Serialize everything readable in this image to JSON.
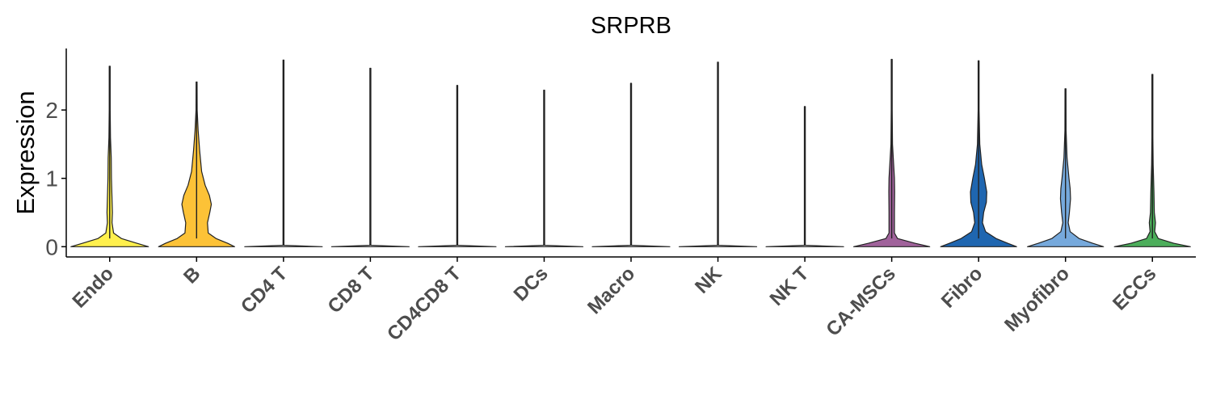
{
  "chart_data": {
    "type": "violin",
    "title": "SRPRB",
    "xlabel": "",
    "ylabel": "Expression",
    "ylim": [
      -0.15,
      2.9
    ],
    "yticks": [
      0,
      1,
      2
    ],
    "grid": false,
    "legend": "none",
    "categories": [
      "Endo",
      "B",
      "CD4 T",
      "CD8 T",
      "CD4CD8 T",
      "DCs",
      "Macro",
      "NK",
      "NK T",
      "CA-MSCs",
      "Fibro",
      "Myofibro",
      "ECCs"
    ],
    "colors": [
      "#FFF04D",
      "#FCC237",
      "#FFFFFF",
      "#FFFFFF",
      "#FFFFFF",
      "#FFFFFF",
      "#FFFFFF",
      "#FFFFFF",
      "#FFFFFF",
      "#A0629B",
      "#1F66B0",
      "#76A9DC",
      "#4CAE5B"
    ],
    "max_values": [
      2.64,
      2.41,
      2.73,
      2.61,
      2.36,
      2.29,
      2.39,
      2.7,
      2.05,
      2.74,
      2.72,
      2.31,
      2.52
    ],
    "density_profiles": [
      [
        [
          0,
          1.0
        ],
        [
          0.05,
          0.7
        ],
        [
          0.12,
          0.3
        ],
        [
          0.2,
          0.1
        ],
        [
          0.35,
          0.06
        ],
        [
          0.5,
          0.07
        ],
        [
          0.7,
          0.06
        ],
        [
          1.0,
          0.045
        ],
        [
          1.3,
          0.04
        ],
        [
          1.6,
          0.02
        ],
        [
          2.0,
          0.008
        ],
        [
          2.64,
          0.003
        ]
      ],
      [
        [
          0,
          0.98
        ],
        [
          0.05,
          0.8
        ],
        [
          0.12,
          0.5
        ],
        [
          0.2,
          0.3
        ],
        [
          0.35,
          0.28
        ],
        [
          0.5,
          0.34
        ],
        [
          0.62,
          0.38
        ],
        [
          0.75,
          0.33
        ],
        [
          0.9,
          0.22
        ],
        [
          1.1,
          0.13
        ],
        [
          1.4,
          0.08
        ],
        [
          1.7,
          0.04
        ],
        [
          2.0,
          0.015
        ],
        [
          2.41,
          0.004
        ]
      ],
      [
        [
          0,
          1.0
        ],
        [
          0.02,
          0.003
        ],
        [
          2.73,
          0.003
        ]
      ],
      [
        [
          0,
          1.0
        ],
        [
          0.02,
          0.003
        ],
        [
          2.61,
          0.003
        ]
      ],
      [
        [
          0,
          1.0
        ],
        [
          0.02,
          0.003
        ],
        [
          2.36,
          0.003
        ]
      ],
      [
        [
          0,
          1.0
        ],
        [
          0.02,
          0.003
        ],
        [
          2.29,
          0.003
        ]
      ],
      [
        [
          0,
          1.0
        ],
        [
          0.02,
          0.003
        ],
        [
          2.39,
          0.003
        ]
      ],
      [
        [
          0,
          1.0
        ],
        [
          0.02,
          0.003
        ],
        [
          2.7,
          0.003
        ]
      ],
      [
        [
          0,
          1.0
        ],
        [
          0.02,
          0.003
        ],
        [
          2.05,
          0.003
        ]
      ],
      [
        [
          0,
          0.98
        ],
        [
          0.05,
          0.6
        ],
        [
          0.12,
          0.15
        ],
        [
          0.2,
          0.07
        ],
        [
          0.5,
          0.07
        ],
        [
          0.8,
          0.075
        ],
        [
          1.0,
          0.07
        ],
        [
          1.2,
          0.05
        ],
        [
          1.5,
          0.02
        ],
        [
          2.0,
          0.008
        ],
        [
          2.74,
          0.003
        ]
      ],
      [
        [
          0,
          0.98
        ],
        [
          0.05,
          0.75
        ],
        [
          0.12,
          0.45
        ],
        [
          0.22,
          0.18
        ],
        [
          0.35,
          0.1
        ],
        [
          0.5,
          0.13
        ],
        [
          0.65,
          0.2
        ],
        [
          0.8,
          0.21
        ],
        [
          1.0,
          0.15
        ],
        [
          1.2,
          0.08
        ],
        [
          1.5,
          0.03
        ],
        [
          2.0,
          0.01
        ],
        [
          2.72,
          0.003
        ]
      ],
      [
        [
          0,
          0.98
        ],
        [
          0.05,
          0.7
        ],
        [
          0.12,
          0.35
        ],
        [
          0.22,
          0.12
        ],
        [
          0.35,
          0.07
        ],
        [
          0.5,
          0.1
        ],
        [
          0.7,
          0.13
        ],
        [
          0.85,
          0.12
        ],
        [
          1.0,
          0.09
        ],
        [
          1.3,
          0.04
        ],
        [
          1.7,
          0.015
        ],
        [
          2.31,
          0.003
        ]
      ],
      [
        [
          0,
          0.98
        ],
        [
          0.05,
          0.55
        ],
        [
          0.12,
          0.15
        ],
        [
          0.22,
          0.06
        ],
        [
          0.35,
          0.08
        ],
        [
          0.5,
          0.05
        ],
        [
          0.8,
          0.04
        ],
        [
          1.2,
          0.02
        ],
        [
          1.6,
          0.01
        ],
        [
          2.52,
          0.003
        ]
      ]
    ]
  }
}
